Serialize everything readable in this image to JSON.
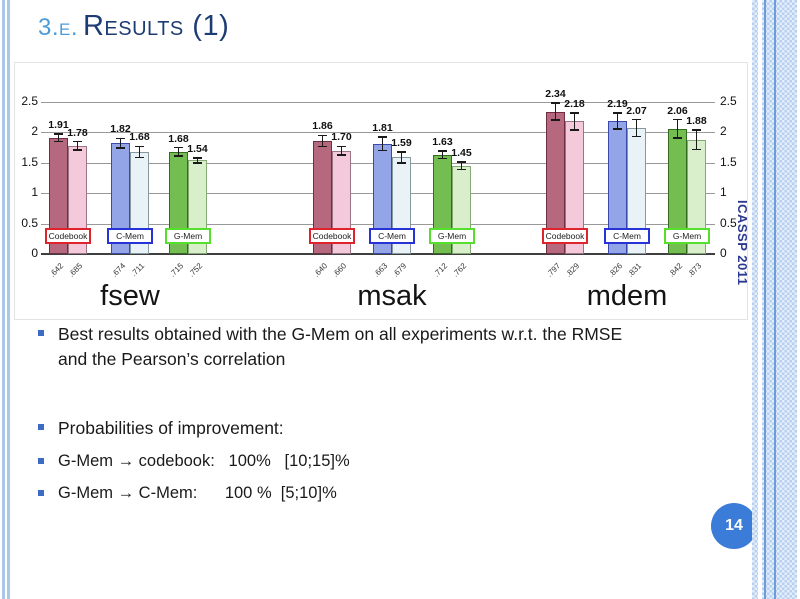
{
  "slide": {
    "title_prefix": "3.e.",
    "title_main": "Results (1)",
    "page_number": "14",
    "side_text": "ICASSP 2011"
  },
  "bullets": {
    "b1": "Best results obtained with the G-Mem on all experiments w.r.t. the RMSE and the Pearson’s correlation",
    "b2": "Probabilities of improvement:",
    "b3": "G-Mem → codebook:   100%   [10;15]%",
    "b4": "G-Mem → C-Mem:      100 %  [5;10]%"
  },
  "chart_data": {
    "type": "bar",
    "title": "",
    "xlabel": "",
    "ylabel": "",
    "ylim": [
      0,
      2.5
    ],
    "yticks": [
      0,
      0.5,
      1,
      1.5,
      2,
      2.5
    ],
    "grid": true,
    "legend": "inline-boxes",
    "group_labels": [
      "fsew",
      "msak",
      "mdem"
    ],
    "methods": [
      {
        "name": "Codebook",
        "box_border": "#e0242e",
        "bar_fill": "#b6697e",
        "bar_edge": "#6e2f42",
        "bar2_fill": "#f4c9da",
        "bar2_edge": "#9a7586"
      },
      {
        "name": "C-Mem",
        "box_border": "#2733d6",
        "bar_fill": "#93a5e7",
        "bar_edge": "#3a49ad",
        "bar2_fill": "#e9f2f6",
        "bar2_edge": "#87989f"
      },
      {
        "name": "G-Mem",
        "box_border": "#54e02c",
        "bar_fill": "#73bd51",
        "bar_edge": "#356b21",
        "bar2_fill": "#d9efcb",
        "bar2_edge": "#85a876"
      }
    ],
    "groups": [
      {
        "label": "fsew",
        "bars": [
          {
            "method": "Codebook",
            "rmse": [
              1.91,
              1.78
            ],
            "err": [
              0.06,
              0.07
            ],
            "corr": [
              ".642",
              ".685"
            ]
          },
          {
            "method": "C-Mem",
            "rmse": [
              1.82,
              1.68
            ],
            "err": [
              0.08,
              0.09
            ],
            "corr": [
              ".674",
              ".711"
            ]
          },
          {
            "method": "G-Mem",
            "rmse": [
              1.68,
              1.54
            ],
            "err": [
              0.07,
              0.04
            ],
            "corr": [
              ".715",
              ".752"
            ]
          }
        ]
      },
      {
        "label": "msak",
        "bars": [
          {
            "method": "Codebook",
            "rmse": [
              1.86,
              1.7
            ],
            "err": [
              0.09,
              0.07
            ],
            "corr": [
              ".640",
              ".660"
            ]
          },
          {
            "method": "C-Mem",
            "rmse": [
              1.81,
              1.59
            ],
            "err": [
              0.11,
              0.09
            ],
            "corr": [
              ".663",
              ".679"
            ]
          },
          {
            "method": "G-Mem",
            "rmse": [
              1.63,
              1.45
            ],
            "err": [
              0.06,
              0.06
            ],
            "corr": [
              ".712",
              ".762"
            ]
          }
        ]
      },
      {
        "label": "mdem",
        "bars": [
          {
            "method": "Codebook",
            "rmse": [
              2.34,
              2.18
            ],
            "err": [
              0.14,
              0.14
            ],
            "corr": [
              ".797",
              ".829"
            ]
          },
          {
            "method": "C-Mem",
            "rmse": [
              2.19,
              2.07
            ],
            "err": [
              0.13,
              0.14
            ],
            "corr": [
              ".826",
              ".831"
            ]
          },
          {
            "method": "G-Mem",
            "rmse": [
              2.06,
              1.88
            ],
            "err": [
              0.15,
              0.16
            ],
            "corr": [
              ".842",
              ".873"
            ]
          }
        ]
      }
    ]
  }
}
